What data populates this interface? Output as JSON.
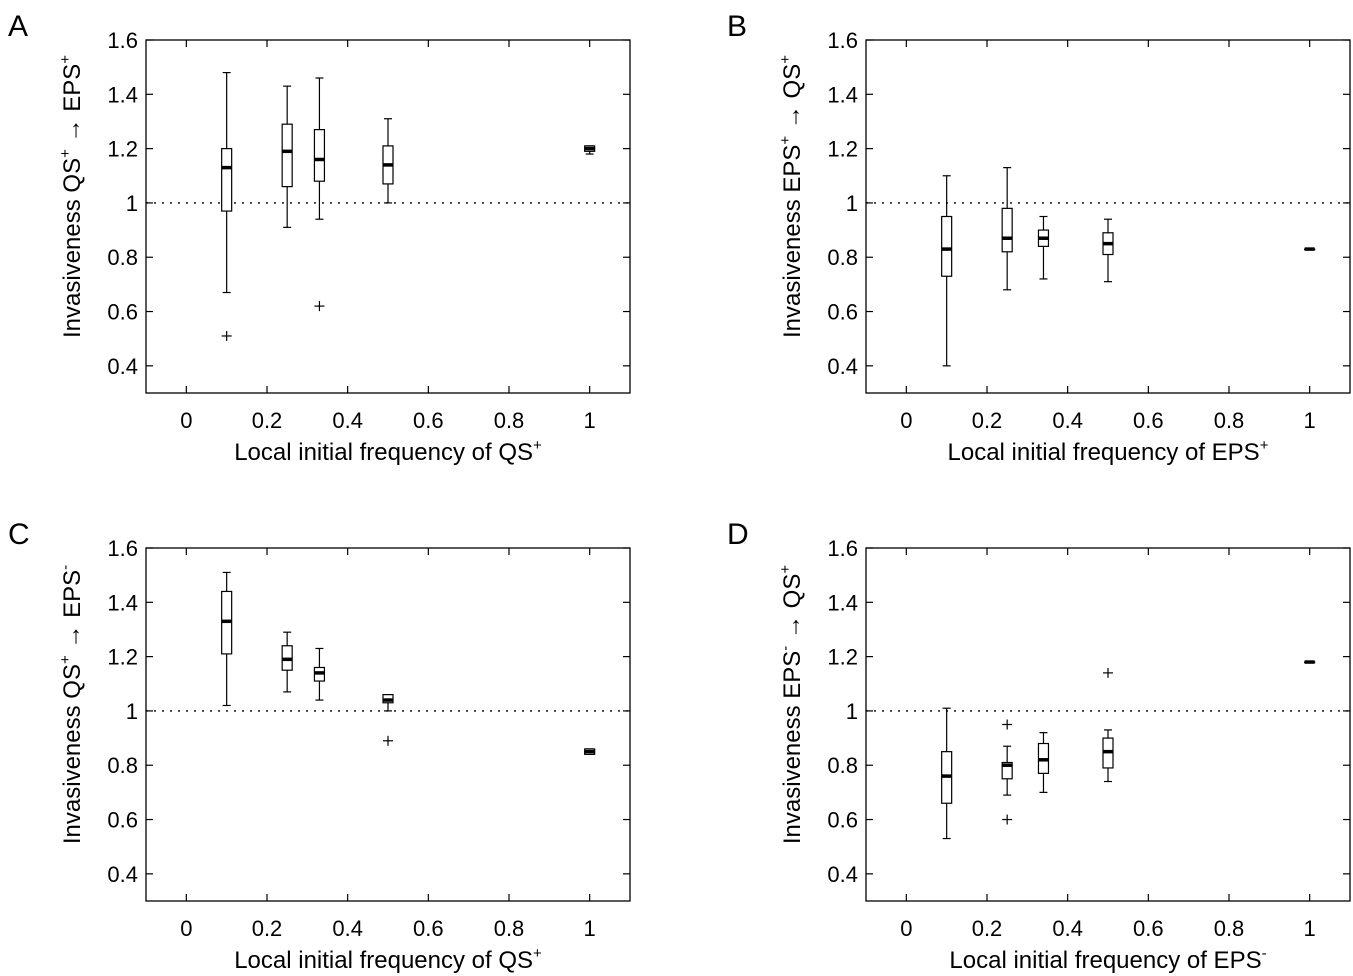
{
  "chart_data": [
    {
      "type": "box",
      "panel_letter": "A",
      "xlabel": {
        "main": "Local initial frequency of QS",
        "sup": "+"
      },
      "ylabel": {
        "a": "Invasiveness ",
        "b": "QS",
        "b_sup": "+",
        "c": "EPS",
        "c_sup": "+"
      },
      "xlim": [
        -0.1,
        1.1
      ],
      "ylim": [
        0.3,
        1.6
      ],
      "xticks": [
        0,
        0.2,
        0.4,
        0.6,
        0.8,
        1
      ],
      "xtick_labels": [
        "0",
        "0.2",
        "0.4",
        "0.6",
        "0.8",
        "1"
      ],
      "yticks": [
        0.4,
        0.6,
        0.8,
        1.0,
        1.2,
        1.4,
        1.6
      ],
      "ytick_labels": [
        "0.4",
        "0.6",
        "0.8",
        "1",
        "1.2",
        "1.4",
        "1.6"
      ],
      "reference_line": 1.0,
      "boxes": [
        {
          "x": 0.1,
          "min": 0.67,
          "q1": 0.97,
          "median": 1.13,
          "q3": 1.2,
          "max": 1.48,
          "outliers": [
            0.51
          ]
        },
        {
          "x": 0.25,
          "min": 0.91,
          "q1": 1.06,
          "median": 1.19,
          "q3": 1.29,
          "max": 1.43,
          "outliers": []
        },
        {
          "x": 0.33,
          "min": 0.94,
          "q1": 1.08,
          "median": 1.16,
          "q3": 1.27,
          "max": 1.46,
          "outliers": [
            0.62
          ]
        },
        {
          "x": 0.5,
          "min": 1.0,
          "q1": 1.07,
          "median": 1.14,
          "q3": 1.21,
          "max": 1.31,
          "outliers": []
        },
        {
          "x": 1.0,
          "min": 1.18,
          "q1": 1.19,
          "median": 1.2,
          "q3": 1.21,
          "max": 1.21,
          "outliers": []
        }
      ]
    },
    {
      "type": "box",
      "panel_letter": "B",
      "xlabel": {
        "main": "Local initial frequency of EPS",
        "sup": "+"
      },
      "ylabel": {
        "a": "Invasiveness ",
        "b": "EPS",
        "b_sup": "+",
        "c": "QS",
        "c_sup": "+"
      },
      "xlim": [
        -0.1,
        1.1
      ],
      "ylim": [
        0.3,
        1.6
      ],
      "xticks": [
        0,
        0.2,
        0.4,
        0.6,
        0.8,
        1
      ],
      "xtick_labels": [
        "0",
        "0.2",
        "0.4",
        "0.6",
        "0.8",
        "1"
      ],
      "yticks": [
        0.4,
        0.6,
        0.8,
        1.0,
        1.2,
        1.4,
        1.6
      ],
      "ytick_labels": [
        "0.4",
        "0.6",
        "0.8",
        "1",
        "1.2",
        "1.4",
        "1.6"
      ],
      "reference_line": 1.0,
      "boxes": [
        {
          "x": 0.1,
          "min": 0.4,
          "q1": 0.73,
          "median": 0.83,
          "q3": 0.95,
          "max": 1.1,
          "outliers": []
        },
        {
          "x": 0.25,
          "min": 0.68,
          "q1": 0.82,
          "median": 0.87,
          "q3": 0.98,
          "max": 1.13,
          "outliers": []
        },
        {
          "x": 0.34,
          "min": 0.72,
          "q1": 0.84,
          "median": 0.87,
          "q3": 0.9,
          "max": 0.95,
          "outliers": []
        },
        {
          "x": 0.5,
          "min": 0.71,
          "q1": 0.81,
          "median": 0.85,
          "q3": 0.89,
          "max": 0.94,
          "outliers": []
        },
        {
          "x": 1.0,
          "min": 0.83,
          "q1": 0.83,
          "median": 0.83,
          "q3": 0.83,
          "max": 0.83,
          "outliers": []
        }
      ]
    },
    {
      "type": "box",
      "panel_letter": "C",
      "xlabel": {
        "main": "Local initial frequency of QS",
        "sup": "+"
      },
      "ylabel": {
        "a": "Invasiveness ",
        "b": "QS",
        "b_sup": "+",
        "c": "EPS",
        "c_sup": "-"
      },
      "xlim": [
        -0.1,
        1.1
      ],
      "ylim": [
        0.3,
        1.6
      ],
      "xticks": [
        0,
        0.2,
        0.4,
        0.6,
        0.8,
        1
      ],
      "xtick_labels": [
        "0",
        "0.2",
        "0.4",
        "0.6",
        "0.8",
        "1"
      ],
      "yticks": [
        0.4,
        0.6,
        0.8,
        1.0,
        1.2,
        1.4,
        1.6
      ],
      "ytick_labels": [
        "0.4",
        "0.6",
        "0.8",
        "1",
        "1.2",
        "1.4",
        "1.6"
      ],
      "reference_line": 1.0,
      "boxes": [
        {
          "x": 0.1,
          "min": 1.02,
          "q1": 1.21,
          "median": 1.33,
          "q3": 1.44,
          "max": 1.51,
          "outliers": []
        },
        {
          "x": 0.25,
          "min": 1.07,
          "q1": 1.15,
          "median": 1.19,
          "q3": 1.24,
          "max": 1.29,
          "outliers": []
        },
        {
          "x": 0.33,
          "min": 1.04,
          "q1": 1.11,
          "median": 1.14,
          "q3": 1.16,
          "max": 1.23,
          "outliers": []
        },
        {
          "x": 0.5,
          "min": 1.0,
          "q1": 1.03,
          "median": 1.04,
          "q3": 1.06,
          "max": 1.06,
          "outliers": [
            0.89
          ]
        },
        {
          "x": 1.0,
          "min": 0.84,
          "q1": 0.84,
          "median": 0.85,
          "q3": 0.86,
          "max": 0.86,
          "outliers": []
        }
      ]
    },
    {
      "type": "box",
      "panel_letter": "D",
      "xlabel": {
        "main": "Local initial frequency of EPS",
        "sup": "-"
      },
      "ylabel": {
        "a": "Invasiveness ",
        "b": "EPS",
        "b_sup": "-",
        "c": "QS",
        "c_sup": "+"
      },
      "xlim": [
        -0.1,
        1.1
      ],
      "ylim": [
        0.3,
        1.6
      ],
      "xticks": [
        0,
        0.2,
        0.4,
        0.6,
        0.8,
        1
      ],
      "xtick_labels": [
        "0",
        "0.2",
        "0.4",
        "0.6",
        "0.8",
        "1"
      ],
      "yticks": [
        0.4,
        0.6,
        0.8,
        1.0,
        1.2,
        1.4,
        1.6
      ],
      "ytick_labels": [
        "0.4",
        "0.6",
        "0.8",
        "1",
        "1.2",
        "1.4",
        "1.6"
      ],
      "reference_line": 1.0,
      "boxes": [
        {
          "x": 0.1,
          "min": 0.53,
          "q1": 0.66,
          "median": 0.76,
          "q3": 0.85,
          "max": 1.01,
          "outliers": []
        },
        {
          "x": 0.25,
          "min": 0.69,
          "q1": 0.75,
          "median": 0.8,
          "q3": 0.81,
          "max": 0.87,
          "outliers": [
            0.6,
            0.95
          ]
        },
        {
          "x": 0.34,
          "min": 0.7,
          "q1": 0.77,
          "median": 0.82,
          "q3": 0.88,
          "max": 0.92,
          "outliers": []
        },
        {
          "x": 0.5,
          "min": 0.74,
          "q1": 0.79,
          "median": 0.85,
          "q3": 0.9,
          "max": 0.93,
          "outliers": [
            1.14
          ]
        },
        {
          "x": 1.0,
          "min": 1.18,
          "q1": 1.18,
          "median": 1.18,
          "q3": 1.18,
          "max": 1.18,
          "outliers": []
        }
      ]
    }
  ]
}
